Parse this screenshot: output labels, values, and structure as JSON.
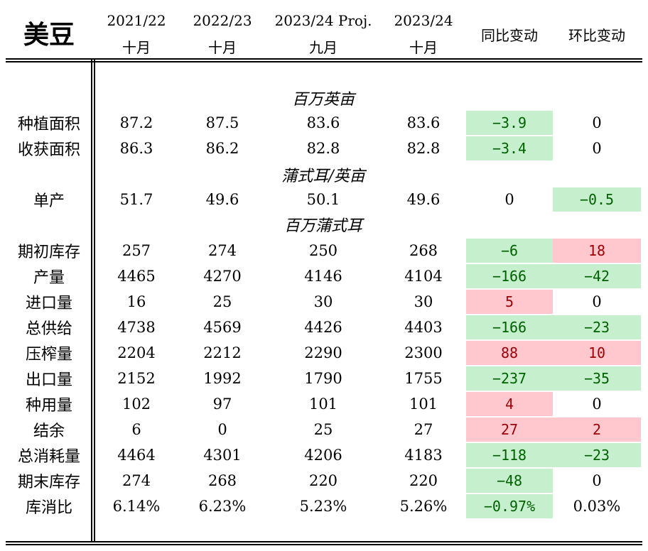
{
  "title": "美豆",
  "header": {
    "cols": [
      {
        "l1": "2021/22",
        "l2": "十月"
      },
      {
        "l1": "2022/23",
        "l2": "十月"
      },
      {
        "l1": "2023/24 Proj.",
        "l2": "九月"
      },
      {
        "l1": "2023/24",
        "l2": "十月"
      }
    ],
    "yoy": "同比变动",
    "mom": "环比变动"
  },
  "units": [
    "百万英亩",
    "蒲式耳/英亩",
    "百万蒲式耳"
  ],
  "rows": [
    {
      "label": "种植面积",
      "v": [
        "87.2",
        "87.5",
        "83.6",
        "83.6"
      ],
      "yoy": "−3.9",
      "yoy_s": "g",
      "mom": "0",
      "mom_s": ""
    },
    {
      "label": "收获面积",
      "v": [
        "86.3",
        "86.2",
        "82.8",
        "82.8"
      ],
      "yoy": "−3.4",
      "yoy_s": "g",
      "mom": "0",
      "mom_s": ""
    },
    {
      "label": "单产",
      "v": [
        "51.7",
        "49.6",
        "50.1",
        "49.6"
      ],
      "yoy": "0",
      "yoy_s": "",
      "mom": "−0.5",
      "mom_s": "g"
    },
    {
      "label": "期初库存",
      "v": [
        "257",
        "274",
        "250",
        "268"
      ],
      "yoy": "−6",
      "yoy_s": "g",
      "mom": "18",
      "mom_s": "r"
    },
    {
      "label": "产量",
      "v": [
        "4465",
        "4270",
        "4146",
        "4104"
      ],
      "yoy": "−166",
      "yoy_s": "g",
      "mom": "−42",
      "mom_s": "g"
    },
    {
      "label": "进口量",
      "v": [
        "16",
        "25",
        "30",
        "30"
      ],
      "yoy": "5",
      "yoy_s": "r",
      "mom": "0",
      "mom_s": ""
    },
    {
      "label": "总供给",
      "v": [
        "4738",
        "4569",
        "4426",
        "4403"
      ],
      "yoy": "−166",
      "yoy_s": "g",
      "mom": "−23",
      "mom_s": "g"
    },
    {
      "label": "压榨量",
      "v": [
        "2204",
        "2212",
        "2290",
        "2300"
      ],
      "yoy": "88",
      "yoy_s": "r",
      "mom": "10",
      "mom_s": "r"
    },
    {
      "label": "出口量",
      "v": [
        "2152",
        "1992",
        "1790",
        "1755"
      ],
      "yoy": "−237",
      "yoy_s": "g",
      "mom": "−35",
      "mom_s": "g"
    },
    {
      "label": "种用量",
      "v": [
        "102",
        "97",
        "101",
        "101"
      ],
      "yoy": "4",
      "yoy_s": "r",
      "mom": "0",
      "mom_s": ""
    },
    {
      "label": "结余",
      "v": [
        "6",
        "0",
        "25",
        "27"
      ],
      "yoy": "27",
      "yoy_s": "r",
      "mom": "2",
      "mom_s": "r"
    },
    {
      "label": "总消耗量",
      "v": [
        "4464",
        "4301",
        "4206",
        "4183"
      ],
      "yoy": "−118",
      "yoy_s": "g",
      "mom": "−23",
      "mom_s": "g"
    },
    {
      "label": "期末库存",
      "v": [
        "274",
        "268",
        "220",
        "220"
      ],
      "yoy": "−48",
      "yoy_s": "g",
      "mom": "0",
      "mom_s": ""
    },
    {
      "label": "库消比",
      "v": [
        "6.14%",
        "6.23%",
        "5.23%",
        "5.26%"
      ],
      "yoy": "−0.97%",
      "yoy_s": "g",
      "mom": "0.03%",
      "mom_s": ""
    }
  ],
  "colors": {
    "green_bg": "#c6efce",
    "green_fg": "#006100",
    "red_bg": "#ffc7ce",
    "red_fg": "#9c0006"
  }
}
